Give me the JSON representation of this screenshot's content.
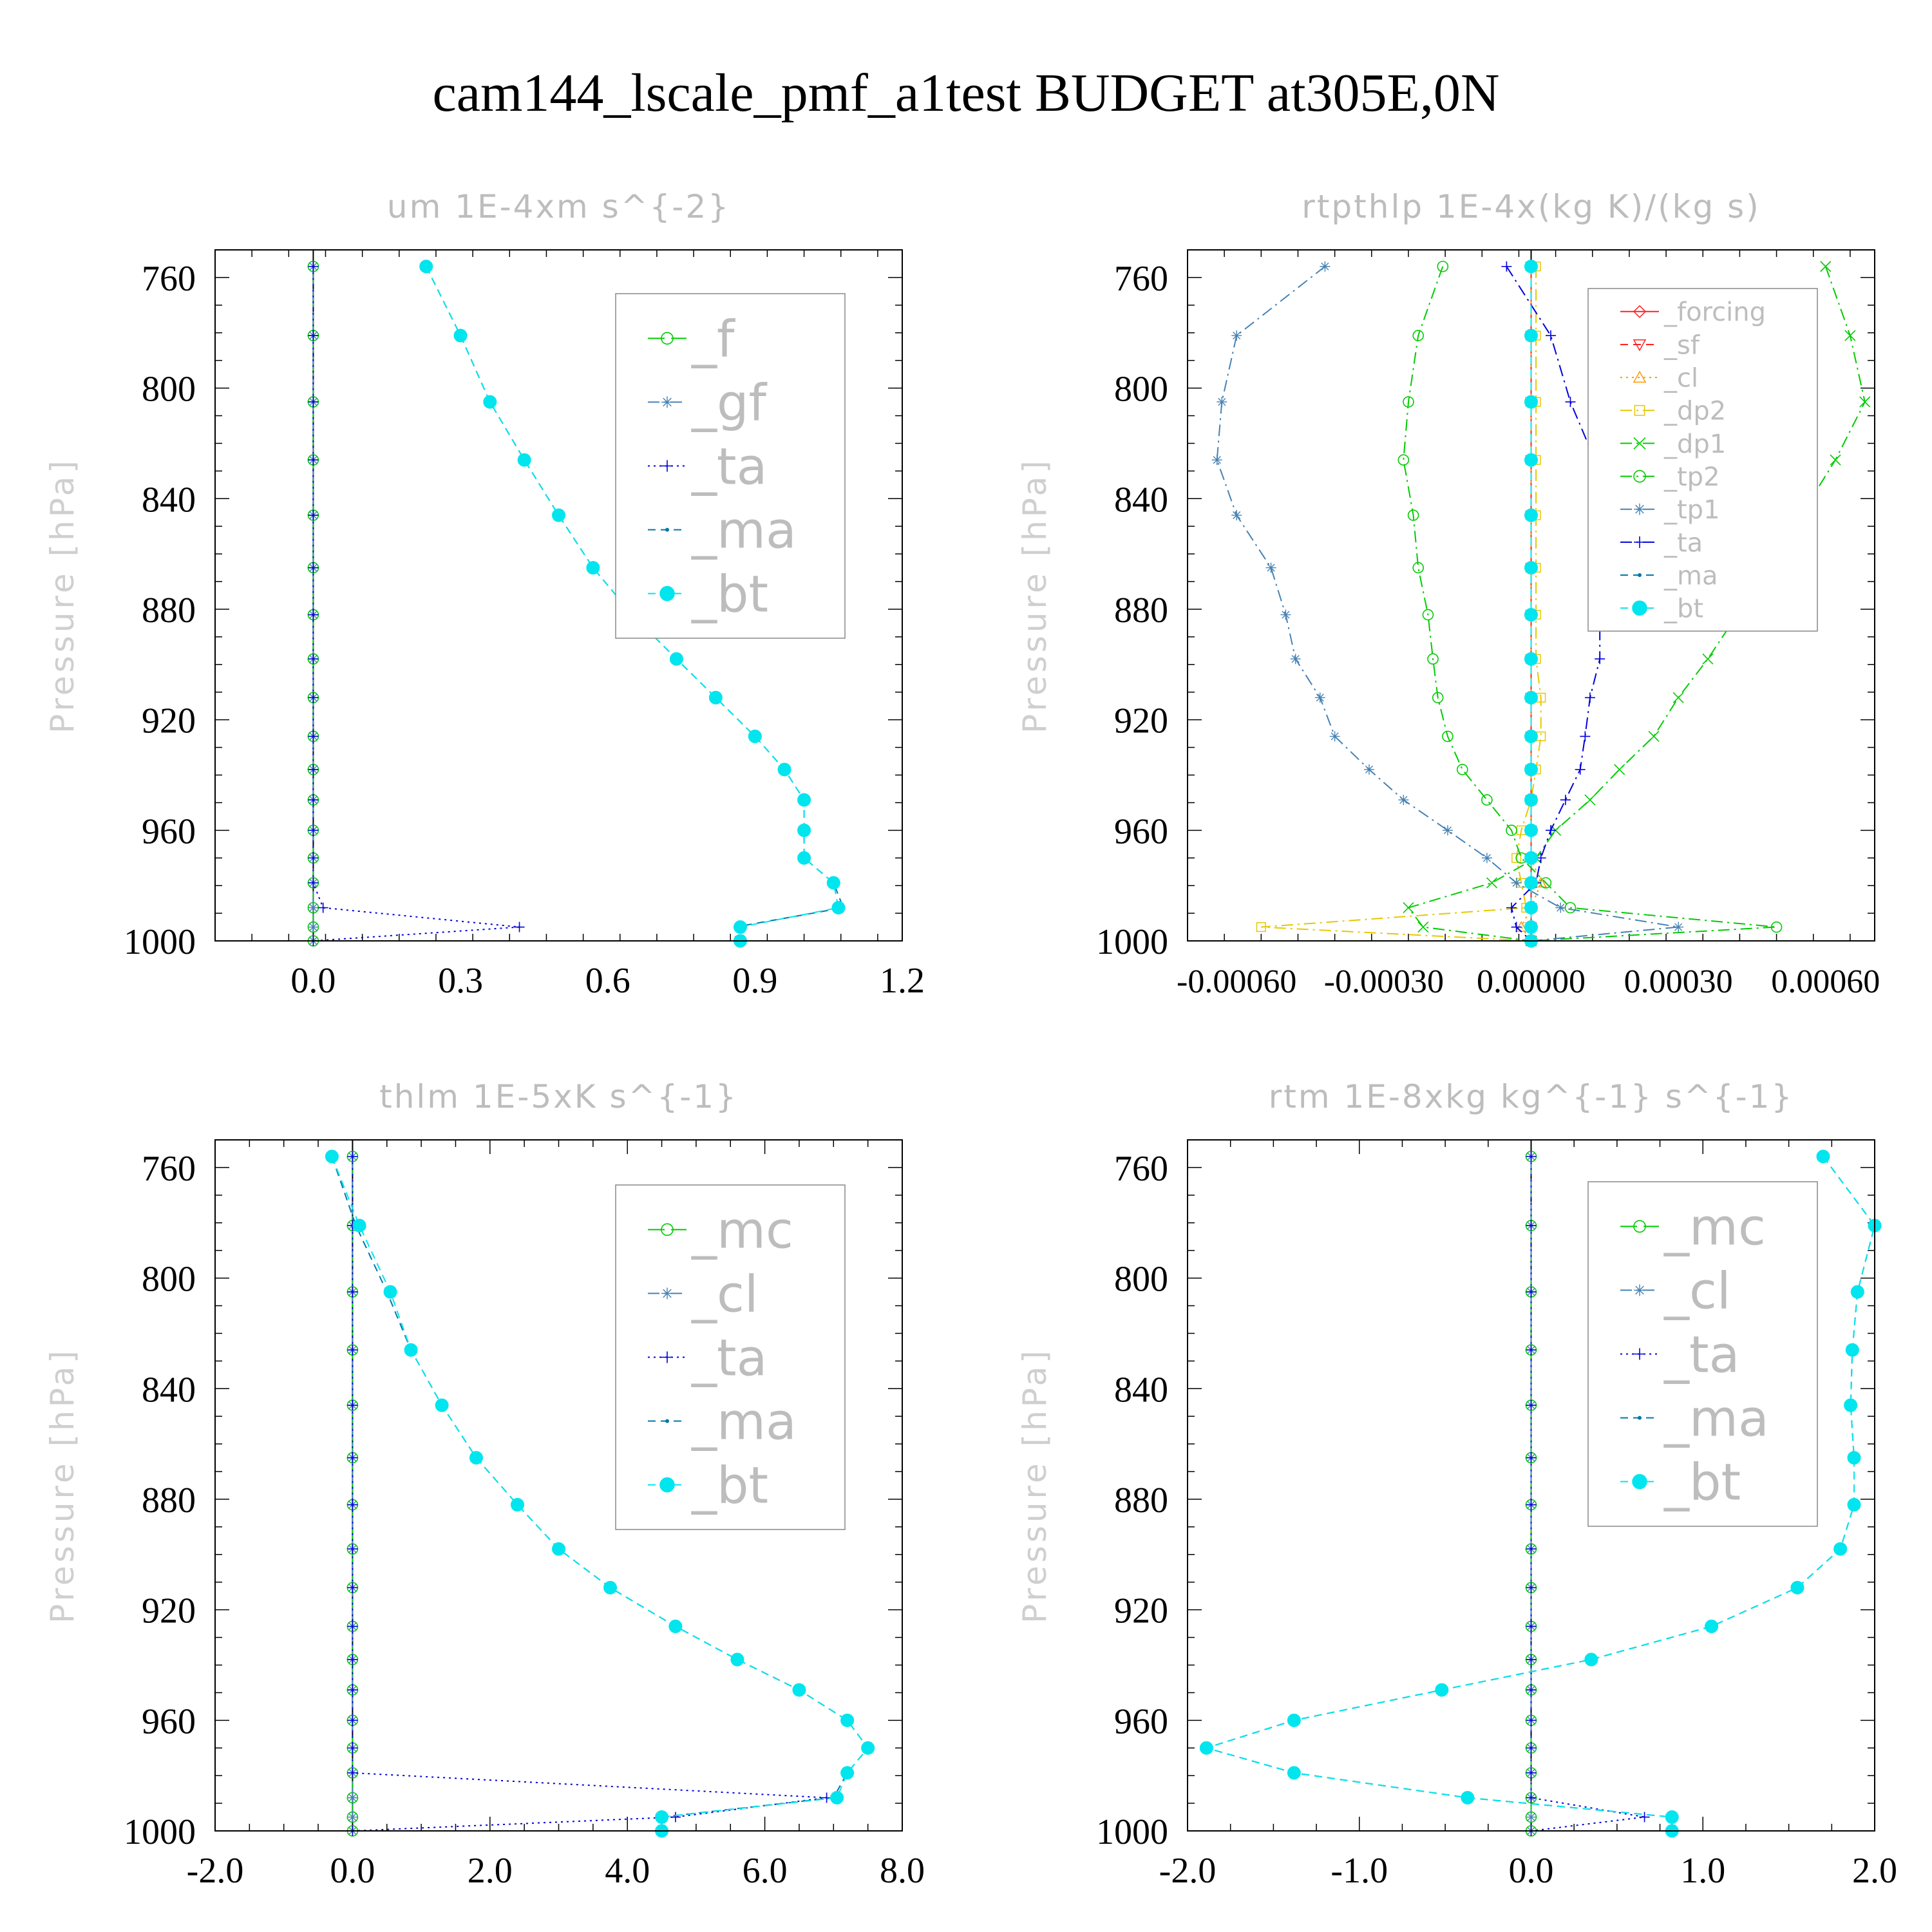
{
  "page": {
    "title": "cam144_lscale_pmf_a1test  BUDGET at305E,0N"
  },
  "colors": {
    "green": "#00cc00",
    "steel": "#4682b4",
    "blue": "#0000dd",
    "teal": "#0077aa",
    "cyan": "#00e5ee",
    "red": "#ff2222",
    "orange": "#ff9900",
    "yellow": "#e6c800",
    "frame": "#000000",
    "grey_text": "#bdbdbd"
  },
  "chart_data": [
    {
      "type": "line",
      "title": "um   1E-4xm s^{-2}",
      "ylabel": "Pressure [hPa]",
      "xlim": [
        -0.2,
        1.2
      ],
      "ylim": [
        1000,
        750
      ],
      "xticks": [
        "0.0",
        "0.3",
        "0.6",
        "0.9",
        "1.2"
      ],
      "xtick_values": [
        0,
        0.3,
        0.6,
        0.9,
        1.2
      ],
      "yticks": [
        "760",
        "800",
        "840",
        "880",
        "920",
        "960",
        "1000"
      ],
      "ytick_values": [
        760,
        800,
        840,
        880,
        920,
        960,
        1000
      ],
      "legend_font": 78,
      "levels": [
        756,
        781,
        805,
        826,
        846,
        865,
        882,
        898,
        912,
        926,
        938,
        949,
        960,
        970,
        979,
        988,
        995,
        1000
      ],
      "series": [
        {
          "name": "_f",
          "marker": "circle",
          "color": "green",
          "dash": "long",
          "x": [
            0,
            0,
            0,
            0,
            0,
            0,
            0,
            0,
            0,
            0,
            0,
            0,
            0,
            0,
            0,
            0,
            0,
            0
          ]
        },
        {
          "name": "_gf",
          "marker": "star",
          "color": "steel",
          "dash": "dashdot",
          "x": [
            0,
            0,
            0,
            0,
            0,
            0,
            0,
            0,
            0,
            0,
            0,
            0,
            0,
            0,
            0,
            0,
            0,
            0
          ]
        },
        {
          "name": "_ta",
          "marker": "plus",
          "color": "blue",
          "dash": "dot",
          "x": [
            0,
            0,
            0,
            0,
            0,
            0,
            0,
            0,
            0,
            0,
            0,
            0,
            0,
            0,
            0,
            0.02,
            0.42,
            0.0
          ]
        },
        {
          "name": "_ma",
          "marker": "dot",
          "color": "teal",
          "dash": "dash",
          "x": [
            0.23,
            0.3,
            0.36,
            0.43,
            0.5,
            0.57,
            0.65,
            0.74,
            0.82,
            0.9,
            0.96,
            1.0,
            1.0,
            1.0,
            1.06,
            1.08,
            0.86,
            0.86
          ]
        },
        {
          "name": "_bt",
          "marker": "filled",
          "color": "cyan",
          "dash": "dash",
          "x": [
            0.23,
            0.3,
            0.36,
            0.43,
            0.5,
            0.57,
            0.65,
            0.74,
            0.82,
            0.9,
            0.96,
            1.0,
            1.0,
            1.0,
            1.06,
            1.07,
            0.87,
            0.87
          ]
        }
      ]
    },
    {
      "type": "line",
      "title": "rtpthlp   1E-4x(kg K)/(kg s)",
      "ylabel": "Pressure [hPa]",
      "xlim": [
        -0.0007,
        0.0007
      ],
      "ylim": [
        1000,
        750
      ],
      "xticks": [
        "-0.00060",
        "-0.00030",
        "0.00000",
        "0.00030",
        "0.00060"
      ],
      "xtick_values": [
        -0.0006,
        -0.0003,
        0,
        0.0003,
        0.0006
      ],
      "yticks": [
        "760",
        "800",
        "840",
        "880",
        "920",
        "960",
        "1000"
      ],
      "ytick_values": [
        760,
        800,
        840,
        880,
        920,
        960,
        1000
      ],
      "legend_font": 40,
      "levels": [
        756,
        781,
        805,
        826,
        846,
        865,
        882,
        898,
        912,
        926,
        938,
        949,
        960,
        970,
        979,
        988,
        995,
        1000
      ],
      "series": [
        {
          "name": "_forcing",
          "marker": "diamond",
          "color": "red",
          "dash": "solid",
          "x": [
            0,
            0,
            0,
            0,
            0,
            0,
            0,
            0,
            0,
            0,
            0,
            0,
            0,
            0,
            0,
            0,
            0,
            0
          ]
        },
        {
          "name": "_sf",
          "marker": "tridown",
          "color": "red",
          "dash": "dash",
          "x": [
            0,
            0,
            0,
            0,
            0,
            0,
            0,
            0,
            0,
            0,
            0,
            0,
            0,
            0,
            0,
            0,
            0,
            0
          ]
        },
        {
          "name": "_cl",
          "marker": "triup",
          "color": "orange",
          "dash": "dot",
          "x": [
            0,
            0,
            0,
            0,
            0,
            0,
            0,
            0,
            0,
            0,
            0,
            0,
            0,
            0.0,
            2e-05,
            0.0,
            -2e-05,
            0
          ]
        },
        {
          "name": "_dp2",
          "marker": "square",
          "color": "yellow",
          "dash": "dashdot",
          "x": [
            1e-05,
            1e-05,
            1e-05,
            1e-05,
            1e-05,
            1e-05,
            1e-05,
            1e-05,
            2e-05,
            2e-05,
            1e-05,
            0,
            -2e-05,
            -3e-05,
            -2e-05,
            -1e-05,
            -0.00055,
            0
          ]
        },
        {
          "name": "_dp1",
          "marker": "cross",
          "color": "green",
          "dash": "dashdot",
          "x": [
            0.0006,
            0.00065,
            0.00068,
            0.00062,
            0.00055,
            0.00048,
            0.00042,
            0.00036,
            0.0003,
            0.00025,
            0.00018,
            0.00012,
            5e-05,
            1e-05,
            -8e-05,
            -0.00025,
            -0.00022,
            0
          ]
        },
        {
          "name": "_tp2",
          "marker": "circle",
          "color": "green",
          "dash": "dashdot",
          "x": [
            -0.00018,
            -0.00023,
            -0.00025,
            -0.00026,
            -0.00024,
            -0.00023,
            -0.00021,
            -0.0002,
            -0.00019,
            -0.00017,
            -0.00014,
            -9e-05,
            -4e-05,
            -2e-05,
            3e-05,
            8e-05,
            0.0005,
            0
          ]
        },
        {
          "name": "_tp1",
          "marker": "star",
          "color": "steel",
          "dash": "dashdot",
          "x": [
            -0.00042,
            -0.0006,
            -0.00063,
            -0.00064,
            -0.0006,
            -0.00053,
            -0.0005,
            -0.00048,
            -0.00043,
            -0.0004,
            -0.00033,
            -0.00026,
            -0.00017,
            -9e-05,
            -3e-05,
            6e-05,
            0.0003,
            0
          ]
        },
        {
          "name": "_ta",
          "marker": "plus",
          "color": "blue",
          "dash": "dashdot",
          "x": [
            -5e-05,
            4e-05,
            8e-05,
            0.00013,
            0.00014,
            0.00014,
            0.00014,
            0.00014,
            0.00012,
            0.00011,
            0.0001,
            7e-05,
            4e-05,
            2e-05,
            1e-05,
            -4e-05,
            -3e-05,
            0
          ]
        },
        {
          "name": "_ma",
          "marker": "dot",
          "color": "teal",
          "dash": "dash",
          "x": [
            0,
            0,
            0,
            0,
            0,
            0,
            0,
            0,
            0,
            0,
            0,
            0,
            0,
            0,
            0,
            0,
            0,
            0
          ]
        },
        {
          "name": "_bt",
          "marker": "filled",
          "color": "cyan",
          "dash": "dash",
          "x": [
            0,
            0,
            0,
            0,
            0,
            0,
            0,
            0,
            0,
            0,
            0,
            0,
            0,
            0,
            0,
            0,
            0,
            0
          ]
        }
      ]
    },
    {
      "type": "line",
      "title": "thlm   1E-5xK s^{-1}",
      "ylabel": "Pressure [hPa]",
      "xlim": [
        -2.0,
        8.0
      ],
      "ylim": [
        1000,
        750
      ],
      "xticks": [
        "-2.0",
        "0.0",
        "2.0",
        "4.0",
        "6.0",
        "8.0"
      ],
      "xtick_values": [
        -2,
        0,
        2,
        4,
        6,
        8
      ],
      "yticks": [
        "760",
        "800",
        "840",
        "880",
        "920",
        "960",
        "1000"
      ],
      "ytick_values": [
        760,
        800,
        840,
        880,
        920,
        960,
        1000
      ],
      "legend_font": 78,
      "levels": [
        756,
        781,
        805,
        826,
        846,
        865,
        882,
        898,
        912,
        926,
        938,
        949,
        960,
        970,
        979,
        988,
        995,
        1000
      ],
      "series": [
        {
          "name": "_mc",
          "marker": "circle",
          "color": "green",
          "dash": "long",
          "x": [
            0,
            0,
            0,
            0,
            0,
            0,
            0,
            0,
            0,
            0,
            0,
            0,
            0,
            0,
            0,
            0,
            0,
            0
          ]
        },
        {
          "name": "_cl",
          "marker": "star",
          "color": "steel",
          "dash": "dashdot",
          "x": [
            0,
            0,
            0,
            0,
            0,
            0,
            0,
            0,
            0,
            0,
            0,
            0,
            0,
            0,
            0,
            0,
            0,
            0
          ]
        },
        {
          "name": "_ta",
          "marker": "plus",
          "color": "blue",
          "dash": "dot",
          "x": [
            0,
            0,
            0,
            0,
            0,
            0,
            0,
            0,
            0,
            0,
            0,
            0,
            0,
            0,
            0,
            6.9,
            4.7,
            0
          ]
        },
        {
          "name": "_ma",
          "marker": "dot",
          "color": "teal",
          "dash": "dash",
          "x": [
            -0.3,
            0.05,
            0.5,
            0.85,
            1.3,
            1.8,
            2.4,
            3.0,
            3.75,
            4.7,
            5.6,
            6.5,
            7.2,
            7.5,
            7.2,
            7.0,
            4.5,
            4.5
          ]
        },
        {
          "name": "_bt",
          "marker": "filled",
          "color": "cyan",
          "dash": "dash",
          "x": [
            -0.3,
            0.1,
            0.55,
            0.85,
            1.3,
            1.8,
            2.4,
            3.0,
            3.75,
            4.7,
            5.6,
            6.5,
            7.2,
            7.5,
            7.2,
            7.05,
            4.5,
            4.5
          ]
        }
      ]
    },
    {
      "type": "line",
      "title": "rtm   1E-8xkg kg^{-1} s^{-1}",
      "ylabel": "Pressure [hPa]",
      "xlim": [
        -2.0,
        2.0
      ],
      "ylim": [
        1000,
        750
      ],
      "xticks": [
        "-2.0",
        "-1.0",
        "0.0",
        "1.0",
        "2.0"
      ],
      "xtick_values": [
        -2,
        -1,
        0,
        1,
        2
      ],
      "yticks": [
        "760",
        "800",
        "840",
        "880",
        "920",
        "960",
        "1000"
      ],
      "ytick_values": [
        760,
        800,
        840,
        880,
        920,
        960,
        1000
      ],
      "legend_font": 78,
      "levels": [
        756,
        781,
        805,
        826,
        846,
        865,
        882,
        898,
        912,
        926,
        938,
        949,
        960,
        970,
        979,
        988,
        995,
        1000
      ],
      "series": [
        {
          "name": "_mc",
          "marker": "circle",
          "color": "green",
          "dash": "long",
          "x": [
            0,
            0,
            0,
            0,
            0,
            0,
            0,
            0,
            0,
            0,
            0,
            0,
            0,
            0,
            0,
            0,
            0,
            0
          ]
        },
        {
          "name": "_cl",
          "marker": "star",
          "color": "steel",
          "dash": "dashdot",
          "x": [
            0,
            0,
            0,
            0,
            0,
            0,
            0,
            0,
            0,
            0,
            0,
            0,
            0,
            0,
            0,
            0,
            0,
            0
          ]
        },
        {
          "name": "_ta",
          "marker": "plus",
          "color": "blue",
          "dash": "dot",
          "x": [
            0,
            0,
            0,
            0,
            0,
            0,
            0,
            0,
            0,
            0,
            0,
            0,
            0,
            0,
            0,
            0,
            0.66,
            0
          ]
        },
        {
          "name": "_ma",
          "marker": "dot",
          "color": "teal",
          "dash": "dash",
          "x": [
            1.7,
            2.0,
            1.9,
            1.87,
            1.86,
            1.88,
            1.88,
            1.8,
            1.55,
            1.05,
            0.35,
            -0.52,
            -1.38,
            -1.89,
            -1.38,
            -0.37,
            0.82,
            0.82
          ]
        },
        {
          "name": "_bt",
          "marker": "filled",
          "color": "cyan",
          "dash": "dash",
          "x": [
            1.7,
            2.0,
            1.9,
            1.87,
            1.86,
            1.88,
            1.88,
            1.8,
            1.55,
            1.05,
            0.35,
            -0.52,
            -1.38,
            -1.89,
            -1.38,
            -0.37,
            0.82,
            0.82
          ]
        }
      ]
    }
  ]
}
